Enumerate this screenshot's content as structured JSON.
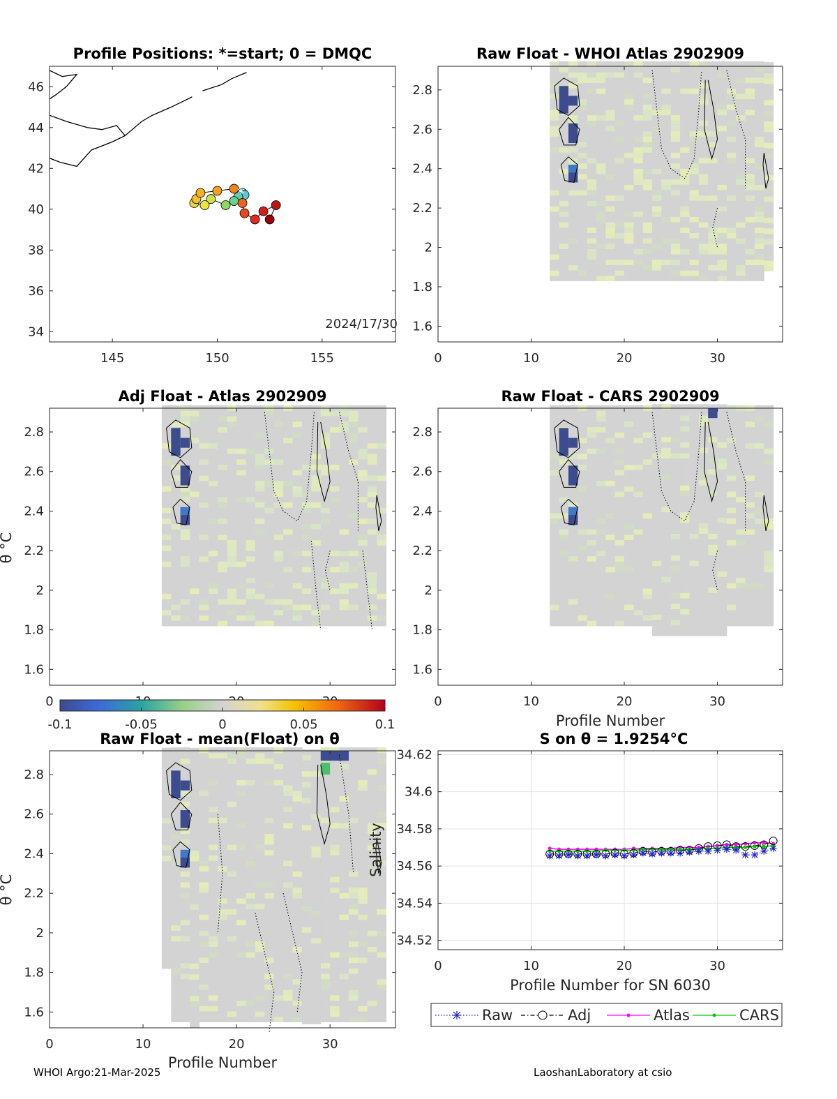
{
  "footer": {
    "left": "WHOI Argo:21-Mar-2025",
    "right": "LaoshanLaboratory at csio"
  },
  "colors": {
    "grid_gray": "#d3d3d3",
    "raw": "#1f1fd0",
    "adj": "#000000",
    "atlas": "#ff00ff",
    "cars": "#00cc00"
  },
  "colorbar": {
    "colormap": "parula-jet diverging (blue-gray-red)",
    "range": [
      -0.1,
      0.1
    ],
    "ticks": [
      "-0.1",
      "-0.05",
      "0",
      "0.05",
      "0.1"
    ]
  },
  "chart_data": [
    {
      "id": "map",
      "type": "scatter",
      "title": "Profile Positions: *=start; 0 = DMQC",
      "xlim": [
        142,
        158.5
      ],
      "ylim": [
        33.5,
        47
      ],
      "xticks": [
        "145",
        "150",
        "155"
      ],
      "yticks": [
        "34",
        "36",
        "38",
        "40",
        "42",
        "44",
        "46"
      ],
      "annotation": "2024/17/30",
      "track": [
        {
          "lon": 151.2,
          "lat": 40.8,
          "c": 0.0
        },
        {
          "lon": 151.3,
          "lat": 40.7,
          "c": 0.05
        },
        {
          "lon": 151.0,
          "lat": 40.6,
          "c": 0.1
        },
        {
          "lon": 150.8,
          "lat": 40.4,
          "c": 0.15
        },
        {
          "lon": 150.4,
          "lat": 40.2,
          "c": 0.25
        },
        {
          "lon": 149.7,
          "lat": 40.5,
          "c": 0.35
        },
        {
          "lon": 149.4,
          "lat": 40.2,
          "c": 0.4
        },
        {
          "lon": 148.9,
          "lat": 40.3,
          "c": 0.45
        },
        {
          "lon": 149.0,
          "lat": 40.5,
          "c": 0.5
        },
        {
          "lon": 149.2,
          "lat": 40.8,
          "c": 0.55
        },
        {
          "lon": 150.0,
          "lat": 40.9,
          "c": 0.6
        },
        {
          "lon": 150.8,
          "lat": 41.0,
          "c": 0.65
        },
        {
          "lon": 151.2,
          "lat": 40.3,
          "c": 0.7
        },
        {
          "lon": 151.3,
          "lat": 39.8,
          "c": 0.75
        },
        {
          "lon": 151.8,
          "lat": 39.5,
          "c": 0.8
        },
        {
          "lon": 152.2,
          "lat": 39.9,
          "c": 0.85
        },
        {
          "lon": 152.8,
          "lat": 40.2,
          "c": 0.9
        },
        {
          "lon": 152.5,
          "lat": 39.5,
          "c": 1.0
        }
      ]
    },
    {
      "id": "raw-whoi",
      "type": "heatmap",
      "title": "Raw Float - WHOI Atlas  2902909",
      "xlim": [
        0,
        37
      ],
      "ylim": [
        1.52,
        2.92
      ],
      "xticks": [
        "0",
        "10",
        "20",
        "30"
      ],
      "yticks": [
        "1.6",
        "1.8",
        "2",
        "2.2",
        "2.4",
        "2.6",
        "2.8"
      ]
    },
    {
      "id": "adj-atlas",
      "type": "heatmap",
      "title": "Adj Float - Atlas  2902909",
      "ylabel": "θ °C",
      "xlim": [
        0,
        37
      ],
      "ylim": [
        1.52,
        2.92
      ],
      "yticks": [
        "1.6",
        "1.8",
        "2",
        "2.2",
        "2.4",
        "2.6",
        "2.8"
      ]
    },
    {
      "id": "raw-cars",
      "type": "heatmap",
      "title": "Raw Float - CARS  2902909",
      "xlabel": "Profile Number",
      "xlim": [
        0,
        37
      ],
      "ylim": [
        1.52,
        2.92
      ],
      "xticks": [
        "0",
        "10",
        "20",
        "30"
      ],
      "yticks": [
        "1.6",
        "1.8",
        "2",
        "2.2",
        "2.4",
        "2.6",
        "2.8"
      ]
    },
    {
      "id": "raw-mean",
      "type": "heatmap",
      "title": "Raw Float - mean(Float) on θ",
      "xlabel": "Profile Number",
      "ylabel": "θ °C",
      "xlim": [
        0,
        37
      ],
      "ylim": [
        1.52,
        2.92
      ],
      "xticks": [
        "0",
        "10",
        "20",
        "30"
      ],
      "yticks": [
        "1.6",
        "1.8",
        "2",
        "2.2",
        "2.4",
        "2.6",
        "2.8"
      ]
    },
    {
      "id": "salinity",
      "type": "line",
      "title": "S on θ = 1.9254°C",
      "xlabel": "Profile Number for SN 6030",
      "ylabel": "Salinity",
      "xlim": [
        0,
        37
      ],
      "ylim": [
        34.515,
        34.622
      ],
      "xticks": [
        "0",
        "10",
        "20",
        "30"
      ],
      "yticks": [
        "34.52",
        "34.54",
        "34.56",
        "34.58",
        "34.6",
        "34.62"
      ],
      "grid": true,
      "legend": "bottom",
      "x": [
        12,
        13,
        14,
        15,
        16,
        17,
        18,
        19,
        20,
        21,
        22,
        23,
        24,
        25,
        26,
        27,
        28,
        29,
        30,
        31,
        32,
        33,
        34,
        35,
        36
      ],
      "series": [
        {
          "name": "Raw",
          "style": "dotted-star",
          "values": [
            34.5655,
            34.5655,
            34.566,
            34.5655,
            34.5655,
            34.566,
            34.5655,
            34.566,
            34.5655,
            34.566,
            34.567,
            34.5665,
            34.567,
            34.567,
            34.567,
            34.5675,
            34.568,
            34.568,
            34.5685,
            34.569,
            34.5685,
            34.566,
            34.566,
            34.568,
            34.5695
          ]
        },
        {
          "name": "Adj",
          "style": "dashdot-circle",
          "values": [
            34.5665,
            34.5665,
            34.5665,
            34.5665,
            34.5665,
            34.5665,
            34.5665,
            34.567,
            34.5665,
            34.567,
            34.568,
            34.5675,
            34.568,
            34.568,
            34.5685,
            34.5685,
            34.5695,
            34.5705,
            34.571,
            34.5715,
            34.5705,
            34.5705,
            34.571,
            34.5715,
            34.5735
          ]
        },
        {
          "name": "Atlas",
          "style": "solid-dot",
          "values": [
            34.5695,
            34.569,
            34.569,
            34.569,
            34.569,
            34.569,
            34.569,
            34.569,
            34.569,
            34.5695,
            34.5695,
            34.5695,
            34.5695,
            34.5695,
            34.57,
            34.57,
            34.57,
            34.5705,
            34.571,
            34.5715,
            34.5715,
            34.572,
            34.5725,
            34.5725,
            34.572
          ]
        },
        {
          "name": "CARS",
          "style": "solid-dot",
          "values": [
            34.568,
            34.568,
            34.568,
            34.568,
            34.568,
            34.568,
            34.5685,
            34.5685,
            34.5685,
            34.5685,
            34.569,
            34.569,
            34.569,
            34.569,
            34.569,
            34.569,
            34.569,
            34.5695,
            34.5695,
            34.57,
            34.57,
            34.57,
            34.5705,
            34.5705,
            34.571
          ]
        }
      ]
    }
  ]
}
